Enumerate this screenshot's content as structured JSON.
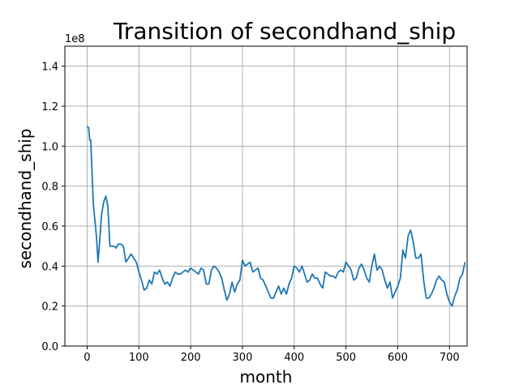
{
  "chart_data": {
    "type": "line",
    "title": "Transition of secondhand_ship",
    "xlabel": "month",
    "ylabel": "secondhand_ship",
    "y_offset_label": "1e8",
    "xlim": [
      -43,
      734
    ],
    "ylim": [
      0,
      1.5
    ],
    "x_ticks": [
      0,
      100,
      200,
      300,
      400,
      500,
      600,
      700
    ],
    "x_tick_labels": [
      "0",
      "100",
      "200",
      "300",
      "400",
      "500",
      "600",
      "700"
    ],
    "y_ticks": [
      0.0,
      0.2,
      0.4,
      0.6,
      0.8,
      1.0,
      1.2,
      1.4
    ],
    "y_tick_labels": [
      "0.0",
      "0.2",
      "0.4",
      "0.6",
      "0.8",
      "1.0",
      "1.2",
      "1.4"
    ],
    "grid": true,
    "line_color": "#1f77b4",
    "series": [
      {
        "x": [
          0,
          3,
          5,
          7,
          9,
          12,
          15,
          18,
          21,
          25,
          28,
          32,
          36,
          40,
          44,
          48,
          52,
          56,
          60,
          65,
          70,
          75,
          80,
          85,
          90,
          95,
          100,
          105,
          110,
          115,
          120,
          125,
          130,
          135,
          140,
          145,
          150,
          155,
          160,
          165,
          170,
          175,
          180,
          185,
          190,
          195,
          200,
          205,
          210,
          215,
          220,
          225,
          230,
          235,
          240,
          245,
          250,
          255,
          260,
          265,
          270,
          275,
          280,
          285,
          290,
          295,
          300,
          305,
          310,
          315,
          320,
          325,
          330,
          335,
          340,
          345,
          350,
          355,
          360,
          365,
          370,
          375,
          380,
          385,
          390,
          395,
          400,
          405,
          410,
          415,
          420,
          425,
          430,
          435,
          440,
          445,
          450,
          455,
          460,
          465,
          470,
          475,
          480,
          485,
          490,
          495,
          500,
          505,
          510,
          515,
          520,
          525,
          530,
          535,
          540,
          545,
          550,
          555,
          560,
          565,
          570,
          575,
          580,
          585,
          590,
          595,
          600,
          605,
          610,
          615,
          620,
          625,
          630,
          635,
          640,
          645,
          650,
          655,
          660,
          665,
          670,
          675,
          680,
          685,
          690,
          695,
          700,
          705,
          710,
          715,
          720,
          725,
          730
        ],
        "y": [
          1.1,
          1.09,
          1.03,
          1.03,
          0.9,
          0.71,
          0.63,
          0.55,
          0.42,
          0.55,
          0.66,
          0.72,
          0.75,
          0.7,
          0.5,
          0.5,
          0.5,
          0.49,
          0.51,
          0.51,
          0.5,
          0.42,
          0.44,
          0.46,
          0.44,
          0.42,
          0.37,
          0.33,
          0.28,
          0.29,
          0.33,
          0.31,
          0.37,
          0.36,
          0.38,
          0.34,
          0.31,
          0.32,
          0.3,
          0.34,
          0.37,
          0.36,
          0.36,
          0.37,
          0.38,
          0.37,
          0.39,
          0.38,
          0.37,
          0.36,
          0.39,
          0.38,
          0.31,
          0.31,
          0.38,
          0.4,
          0.39,
          0.37,
          0.34,
          0.28,
          0.23,
          0.26,
          0.32,
          0.27,
          0.31,
          0.33,
          0.43,
          0.4,
          0.41,
          0.42,
          0.37,
          0.38,
          0.39,
          0.34,
          0.33,
          0.3,
          0.27,
          0.24,
          0.24,
          0.27,
          0.3,
          0.26,
          0.29,
          0.26,
          0.31,
          0.34,
          0.4,
          0.39,
          0.37,
          0.4,
          0.36,
          0.32,
          0.33,
          0.36,
          0.34,
          0.34,
          0.31,
          0.29,
          0.37,
          0.36,
          0.35,
          0.35,
          0.34,
          0.37,
          0.38,
          0.37,
          0.42,
          0.4,
          0.38,
          0.33,
          0.34,
          0.39,
          0.41,
          0.38,
          0.34,
          0.32,
          0.4,
          0.46,
          0.38,
          0.4,
          0.38,
          0.33,
          0.29,
          0.32,
          0.24,
          0.27,
          0.3,
          0.34,
          0.48,
          0.44,
          0.55,
          0.58,
          0.52,
          0.44,
          0.44,
          0.46,
          0.33,
          0.24,
          0.24,
          0.26,
          0.29,
          0.33,
          0.35,
          0.33,
          0.32,
          0.26,
          0.22,
          0.2,
          0.25,
          0.28,
          0.34,
          0.36,
          0.42
        ]
      }
    ]
  }
}
